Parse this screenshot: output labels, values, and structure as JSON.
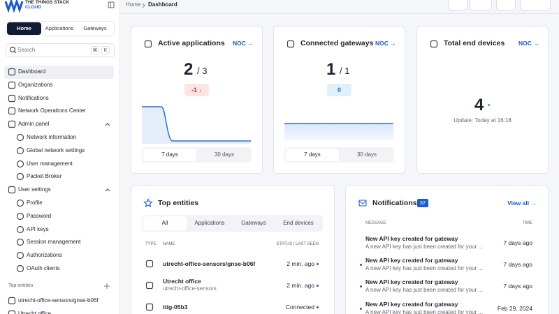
{
  "logo": {
    "line1": "THE THINGS STACK",
    "line2": "CLOUD"
  },
  "sidebar": {
    "tabs": [
      "Home",
      "Applications",
      "Gateways"
    ],
    "search": {
      "placeholder": "Search",
      "keys": [
        "⌘",
        "K"
      ]
    },
    "nav": [
      {
        "label": "Dashboard"
      },
      {
        "label": "Organizations"
      },
      {
        "label": "Notifications"
      },
      {
        "label": "Network Operations Center"
      },
      {
        "label": "Admin panel",
        "children": [
          "Network information",
          "Global network settings",
          "User management",
          "Packet Broker"
        ]
      },
      {
        "label": "User settings",
        "children": [
          "Profile",
          "Password",
          "API keys",
          "Session management",
          "Authorizations",
          "OAuth clients"
        ]
      }
    ],
    "top_entities_label": "Top entities",
    "recent": [
      "utrecht-office-sensors/gnse-b06f",
      "Utrecht office"
    ]
  },
  "breadcrumb": [
    "Home",
    "Dashboard"
  ],
  "cards": [
    {
      "title": "Active applications",
      "link": "NOC →",
      "count": 2,
      "total": "/ 3",
      "change": "-1 ↓",
      "ranges": [
        "7 days",
        "30 days"
      ]
    },
    {
      "title": "Connected gateways",
      "link": "NOC →",
      "count": 1,
      "total": "/ 1",
      "change": 0,
      "ranges": [
        "7 days",
        "30 days"
      ]
    },
    {
      "title": "Total end devices",
      "link": "NOC →",
      "count": 4,
      "update": "Update: Today at 16:18"
    }
  ],
  "top_entities": {
    "title": "Top entities",
    "tabs": [
      "All",
      "Applications",
      "Gateways",
      "End devices"
    ],
    "columns": [
      "TYPE",
      "NAME",
      "STATUS / LAST SEEN"
    ],
    "rows": [
      {
        "name": "utrecht-office-sensors/gnse-b06f",
        "status": "2 min. ago"
      },
      {
        "name": "Utrecht office",
        "sub": "utrecht-office-sensors",
        "status": "2 min. ago"
      },
      {
        "name": "ttig-05b3",
        "status": "Connected"
      }
    ]
  },
  "notifications": {
    "title": "Notifications",
    "count": 37,
    "link": "View all →",
    "columns": [
      "MESSAGE",
      "TIME"
    ],
    "rows": [
      {
        "title": "New API key created for gateway",
        "text": "A new API key has just been created for your ...",
        "time": "7 days ago"
      },
      {
        "title": "New API key created for gateway",
        "text": "A new API key has just been created for your ...",
        "time": "7 days ago"
      },
      {
        "title": "New API key created for gateway",
        "text": "A new API key has just been created for your ...",
        "time": "7 days ago"
      },
      {
        "title": "New API key created for gateway",
        "text": "A new API key has just been created for your ...",
        "time": "Feb 29, 2024"
      }
    ]
  }
}
